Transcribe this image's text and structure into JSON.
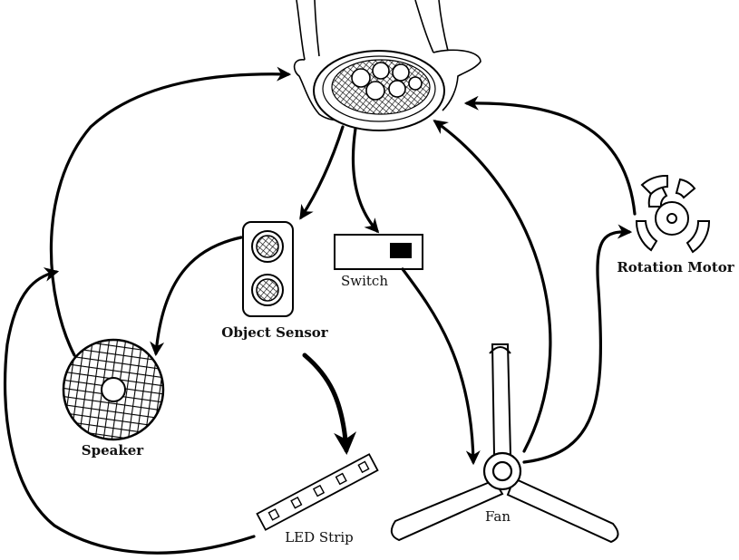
{
  "diagram": {
    "nodes": {
      "plate": {
        "label": ""
      },
      "object_sensor": {
        "label": "Object Sensor"
      },
      "switch": {
        "label": "Switch"
      },
      "rotation_motor": {
        "label": "Rotation Motor"
      },
      "speaker": {
        "label": "Speaker"
      },
      "led_strip": {
        "label": "LED Strip"
      },
      "fan": {
        "label": "Fan"
      }
    }
  },
  "colors": {
    "ink": "#000000",
    "background": "#ffffff"
  }
}
